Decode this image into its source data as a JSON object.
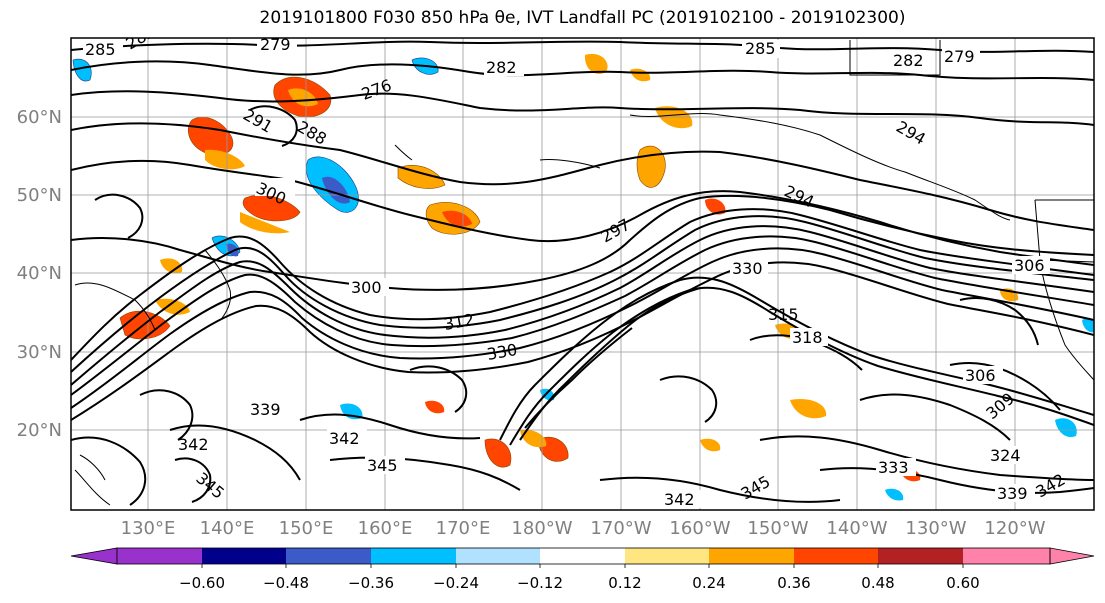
{
  "title": "2019101800 F030 850 hPa θe, IVT Landfall PC (2019102100 - 2019102300)",
  "map": {
    "lat_labels": [
      "60°N",
      "50°N",
      "40°N",
      "30°N",
      "20°N"
    ],
    "lon_labels": [
      "130°E",
      "140°E",
      "150°E",
      "160°E",
      "170°E",
      "180°W",
      "170°W",
      "160°W",
      "150°W",
      "140°W",
      "130°W",
      "120°W"
    ],
    "contour_labels": [
      "279",
      "282",
      "285",
      "276",
      "279",
      "282",
      "288",
      "291",
      "300",
      "294",
      "294",
      "297",
      "300",
      "312",
      "330",
      "330",
      "315",
      "318",
      "306",
      "306",
      "309",
      "324",
      "339",
      "342",
      "345",
      "342",
      "339",
      "333",
      "345",
      "342",
      "345",
      "342",
      "285",
      "282"
    ]
  },
  "colorbar": {
    "ticks": [
      "−0.60",
      "−0.48",
      "−0.36",
      "−0.24",
      "−0.12",
      "0.12",
      "0.24",
      "0.36",
      "0.48",
      "0.60"
    ],
    "colors": [
      "#9932cc",
      "#00008b",
      "#3a5bc8",
      "#00bfff",
      "#b0e2ff",
      "#ffffff",
      "#ffe680",
      "#ffa500",
      "#ff4500",
      "#b22222",
      "#ff82ab"
    ]
  }
}
